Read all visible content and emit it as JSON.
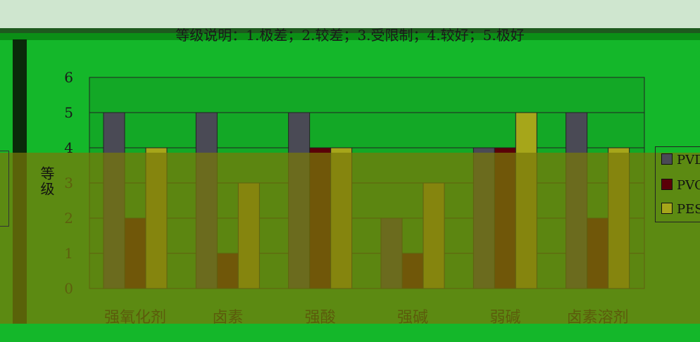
{
  "chart_data": {
    "type": "bar",
    "title": "等级说明：1.极差；2.较差；3.受限制；4.较好；5.极好",
    "ylabel": "等级",
    "xlabel": "",
    "categories": [
      "强氧化剂",
      "卤素",
      "强酸",
      "强碱",
      "弱碱",
      "卤素溶剂"
    ],
    "series": [
      {
        "name": "PVDF",
        "values": [
          5,
          5,
          5,
          2,
          4,
          5
        ]
      },
      {
        "name": "PVC",
        "values": [
          2,
          1,
          4,
          1,
          4,
          2
        ]
      },
      {
        "name": "PES",
        "values": [
          4,
          3,
          4,
          3,
          5,
          4
        ]
      }
    ],
    "ylim": [
      0,
      6
    ],
    "yticks": [
      0,
      1,
      2,
      3,
      4,
      5,
      6
    ],
    "grid": true,
    "legend_position": "right",
    "colors": [
      "#4a4a55",
      "#5a0008",
      "#a6a61a"
    ]
  }
}
